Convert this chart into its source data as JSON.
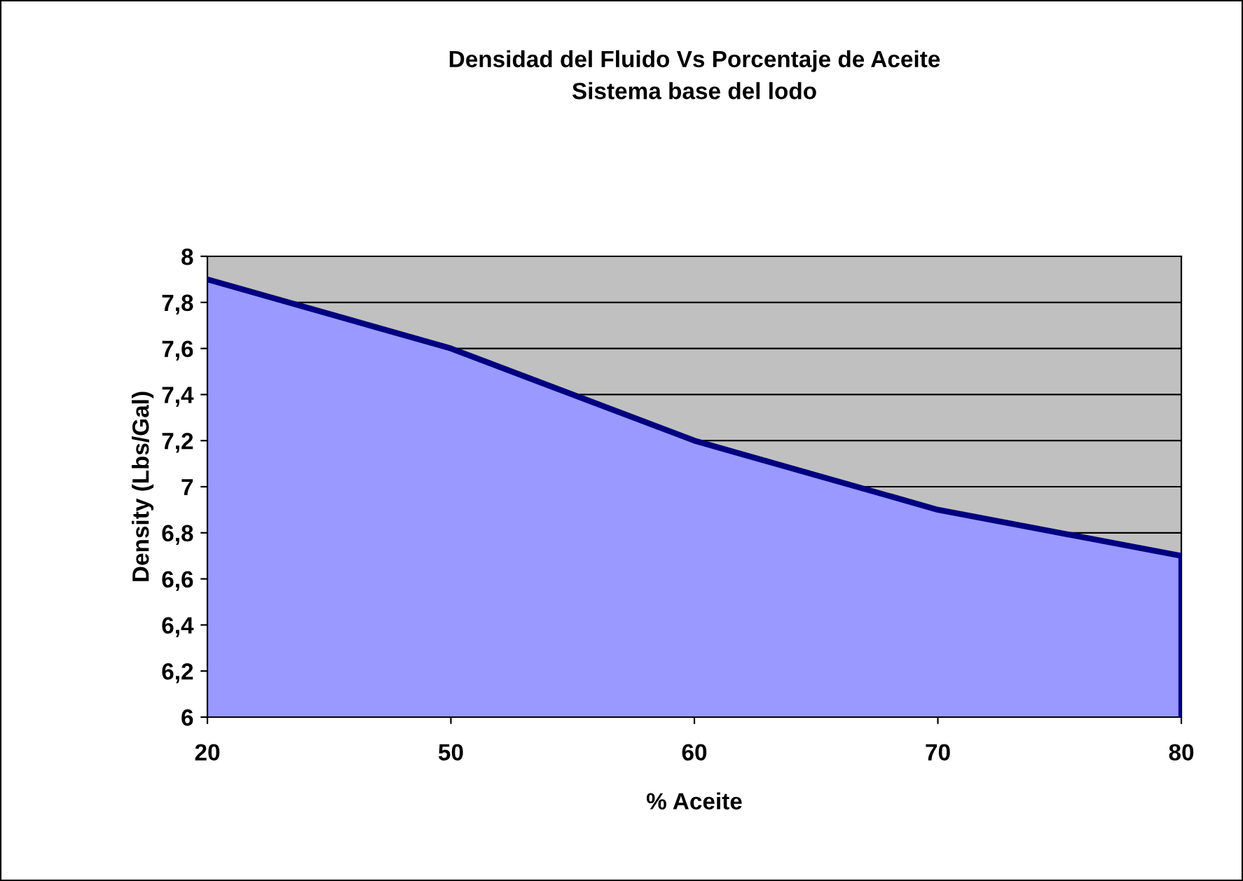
{
  "chart_data": {
    "type": "area",
    "title": "Densidad del Fluido Vs Porcentaje de Aceite\nSistema base del lodo",
    "xlabel": "% Aceite",
    "ylabel": "Density (Lbs/Gal)",
    "categories": [
      "20",
      "50",
      "60",
      "70",
      "80"
    ],
    "series": [
      {
        "color": "#9999ff",
        "values": [
          7.9,
          7.6,
          7.2,
          6.9,
          6.7
        ]
      }
    ],
    "ylim": [
      6,
      8
    ],
    "yticks": [
      6,
      {
        "value": 6.2,
        "label": "6,2"
      },
      {
        "value": 6.4,
        "label": "6,4"
      },
      {
        "value": 6.6,
        "label": "6,6"
      },
      {
        "value": 6.8,
        "label": "6,8"
      },
      7,
      {
        "value": 7.2,
        "label": "7,2"
      },
      {
        "value": 7.4,
        "label": "7,4"
      },
      {
        "value": 7.6,
        "label": "7,6"
      },
      {
        "value": 7.8,
        "label": "7,8"
      },
      8
    ],
    "grid": "y",
    "legend": false
  }
}
